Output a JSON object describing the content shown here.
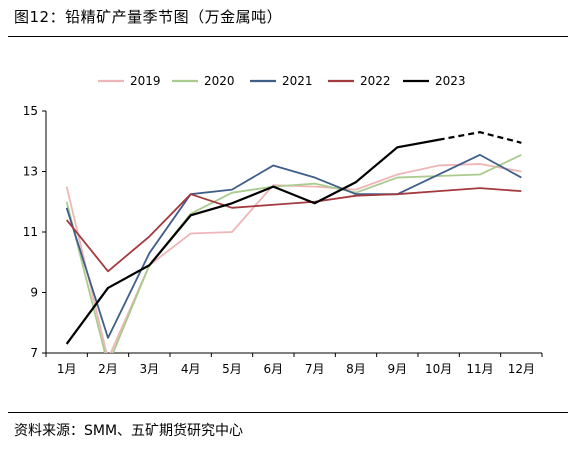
{
  "title": "图12：铅精矿产量季节图（万金属吨）",
  "source": "资料来源：SMM、五矿期货研究中心",
  "chart_data": {
    "type": "line",
    "categories": [
      "1月",
      "2月",
      "3月",
      "4月",
      "5月",
      "6月",
      "7月",
      "8月",
      "9月",
      "10月",
      "11月",
      "12月"
    ],
    "ylim": [
      7,
      15
    ],
    "yticks": [
      7,
      9,
      11,
      13,
      15
    ],
    "grid": false,
    "legend": "top",
    "series": [
      {
        "name": "2019",
        "color": "#efb6b8",
        "values": [
          12.5,
          6.8,
          9.9,
          10.95,
          11.0,
          12.55,
          12.5,
          12.4,
          12.9,
          13.2,
          13.25,
          13.0
        ]
      },
      {
        "name": "2020",
        "color": "#a9cb8e",
        "values": [
          12.0,
          6.6,
          9.9,
          11.6,
          12.3,
          12.5,
          12.6,
          12.3,
          12.8,
          12.85,
          12.9,
          13.55
        ]
      },
      {
        "name": "2021",
        "color": "#3f5f8a",
        "values": [
          11.8,
          7.5,
          10.3,
          12.25,
          12.4,
          13.2,
          12.8,
          12.25,
          12.25,
          12.9,
          13.55,
          12.8
        ]
      },
      {
        "name": "2022",
        "color": "#a33a3e",
        "values": [
          11.4,
          9.7,
          10.85,
          12.25,
          11.8,
          11.9,
          12.0,
          12.2,
          12.25,
          12.35,
          12.45,
          12.35
        ]
      },
      {
        "name": "2023",
        "color": "#000000",
        "values": [
          7.3,
          9.15,
          9.9,
          11.55,
          11.95,
          12.5,
          11.95,
          12.65,
          13.8,
          14.05,
          14.3,
          13.95
        ],
        "dashed_from_index": 9
      }
    ]
  }
}
